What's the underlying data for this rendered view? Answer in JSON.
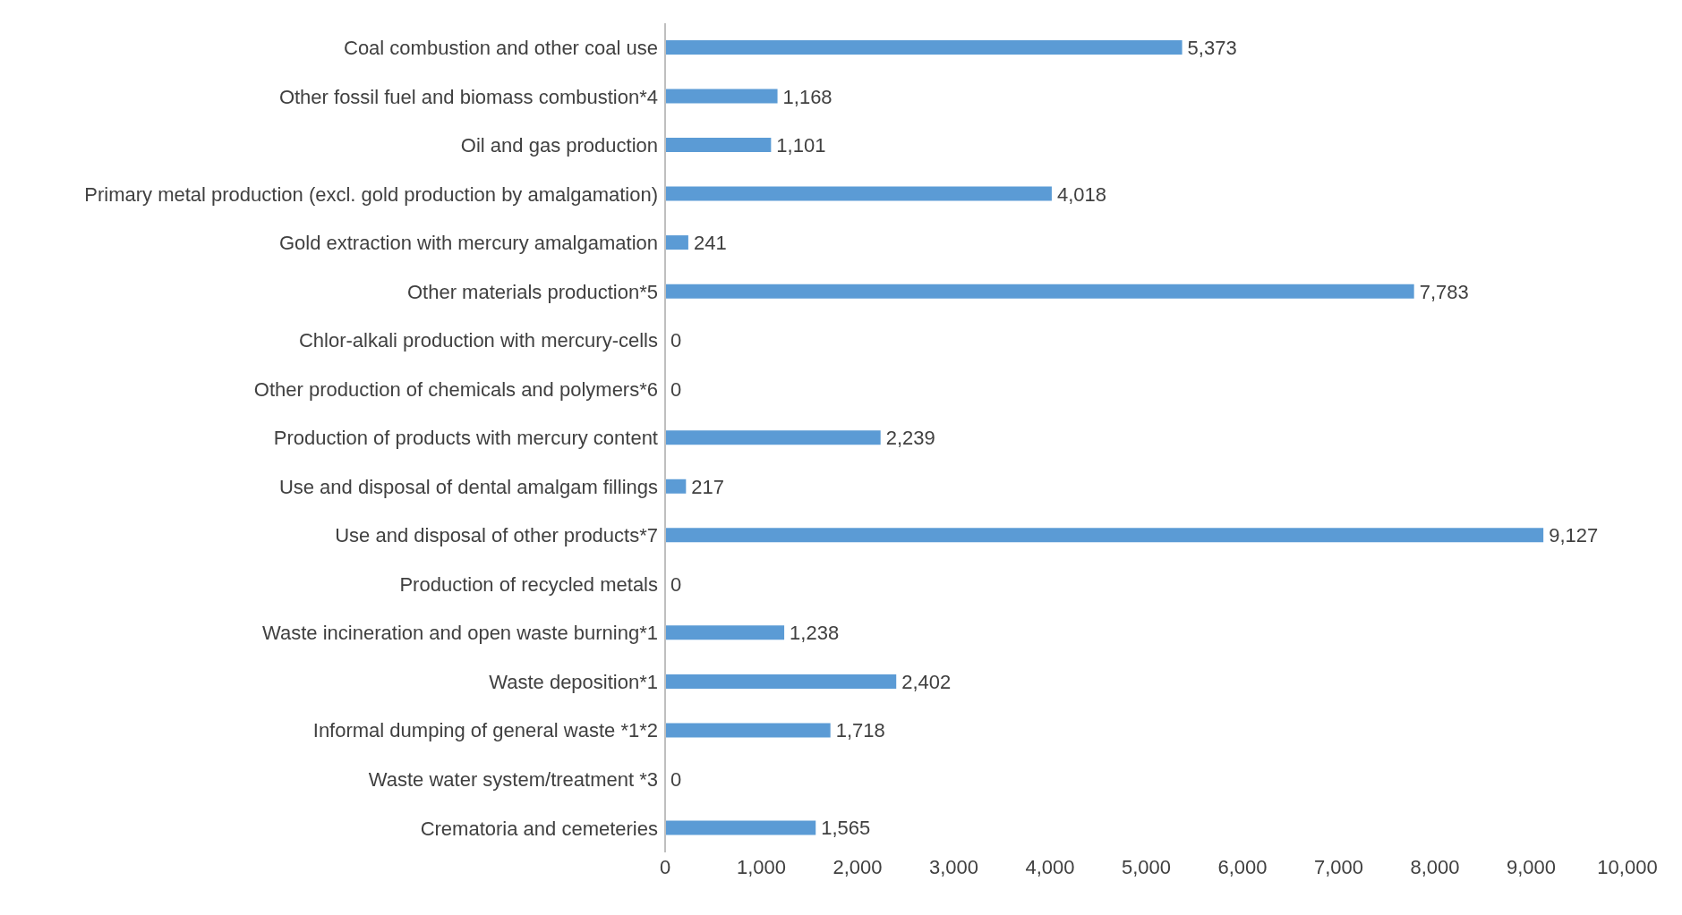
{
  "chart_data": {
    "type": "bar",
    "orientation": "horizontal",
    "categories": [
      "Coal combustion and other coal use",
      "Other fossil fuel and biomass combustion*4",
      "Oil and gas production",
      "Primary metal production (excl. gold production by amalgamation)",
      "Gold extraction with mercury amalgamation",
      "Other materials production*5",
      "Chlor-alkali production with mercury-cells",
      "Other production of chemicals and polymers*6",
      "Production of products with mercury content",
      "Use and disposal of dental amalgam fillings",
      "Use and disposal of other products*7",
      "Production of recycled metals",
      "Waste incineration and open waste burning*1",
      "Waste deposition*1",
      "Informal dumping of general waste *1*2",
      "Waste water system/treatment *3",
      "Crematoria and cemeteries"
    ],
    "values": [
      5373,
      1168,
      1101,
      4018,
      241,
      7783,
      0,
      0,
      2239,
      217,
      9127,
      0,
      1238,
      2402,
      1718,
      0,
      1565
    ],
    "value_labels": [
      "5,373",
      "1,168",
      "1,101",
      "4,018",
      "241",
      "7,783",
      "0",
      "0",
      "2,239",
      "217",
      "9,127",
      "0",
      "1,238",
      "2,402",
      "1,718",
      "0",
      "1,565"
    ],
    "color": "#5b9bd5",
    "xlim": [
      0,
      10000
    ],
    "xticks": [
      0,
      {
        "value": 1000,
        "label": "1,000"
      },
      {
        "value": 2000,
        "label": "2,000"
      },
      {
        "value": 3000,
        "label": "3,000"
      },
      {
        "value": 4000,
        "label": "4,000"
      },
      {
        "value": 5000,
        "label": "5,000"
      },
      {
        "value": 6000,
        "label": "6,000"
      },
      {
        "value": 7000,
        "label": "7,000"
      },
      {
        "value": 8000,
        "label": "8,000"
      },
      {
        "value": 9000,
        "label": "9,000"
      },
      {
        "value": 10000,
        "label": "10,000"
      }
    ],
    "grid": false,
    "legend": false
  }
}
